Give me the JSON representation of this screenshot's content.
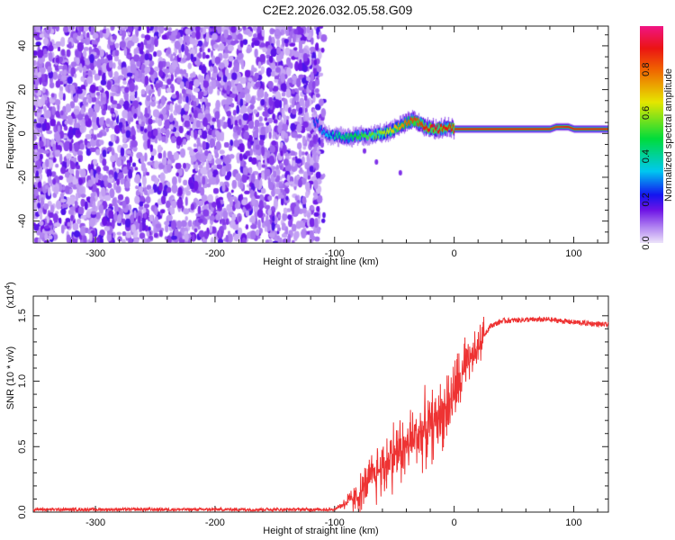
{
  "title": "C2E2.2026.032.05.58.G09",
  "chart_data": [
    {
      "type": "heatmap",
      "xlabel": "Height of straight line (km)",
      "ylabel": "Frequency (Hz)",
      "xlim": [
        -352,
        129
      ],
      "ylim": [
        -50,
        49
      ],
      "xticks": [
        -300,
        -200,
        -100,
        0,
        100
      ],
      "yticks": [
        -40,
        -20,
        0,
        20,
        40
      ],
      "noise_region_km": [
        -352,
        -113
      ],
      "ridge": {
        "x": [
          -115,
          -110,
          -100,
          -90,
          -80,
          -70,
          -60,
          -50,
          -40,
          -35,
          -30,
          -25,
          -15,
          -5,
          0,
          40,
          80,
          85,
          95,
          100,
          129
        ],
        "freq": [
          5,
          0,
          -1,
          -2,
          -1,
          -1,
          0,
          2,
          5,
          6,
          5,
          3,
          2,
          3,
          2,
          2,
          2,
          3,
          3,
          2,
          2
        ],
        "amplitude": [
          0.25,
          0.3,
          0.4,
          0.45,
          0.5,
          0.55,
          0.6,
          0.7,
          0.8,
          0.85,
          0.85,
          0.9,
          0.9,
          0.9,
          0.9,
          0.9,
          0.9,
          0.85,
          0.9,
          0.9,
          0.9
        ]
      },
      "colorbar": {
        "label": "Normalized spectral amplitude",
        "range": [
          0,
          1
        ],
        "ticks": [
          "0.0",
          "0.2",
          "0.4",
          "0.6",
          "0.8"
        ]
      }
    },
    {
      "type": "line",
      "xlabel": "Height of straight line (km)",
      "ylabel": "SNR (10 * v/v)",
      "yscale_label": "(x10",
      "yscale_exp": "4",
      "xlim": [
        -352,
        129
      ],
      "ylim": [
        0,
        1.65
      ],
      "xticks": [
        -300,
        -200,
        -100,
        0,
        100
      ],
      "yticks": [
        "0.0",
        "0.5",
        "1.0",
        "1.5"
      ],
      "color": "#ee3333",
      "series": [
        {
          "name": "SNR",
          "x": [
            -352,
            -100,
            -95,
            -80,
            -70,
            -60,
            -50,
            -40,
            -30,
            -20,
            -10,
            0,
            10,
            20,
            25,
            30,
            40,
            60,
            80,
            100,
            129
          ],
          "y": [
            0.02,
            0.02,
            0.05,
            0.12,
            0.25,
            0.35,
            0.45,
            0.5,
            0.6,
            0.65,
            0.75,
            0.9,
            1.1,
            1.25,
            1.35,
            1.42,
            1.46,
            1.47,
            1.47,
            1.45,
            1.43
          ]
        }
      ]
    }
  ]
}
